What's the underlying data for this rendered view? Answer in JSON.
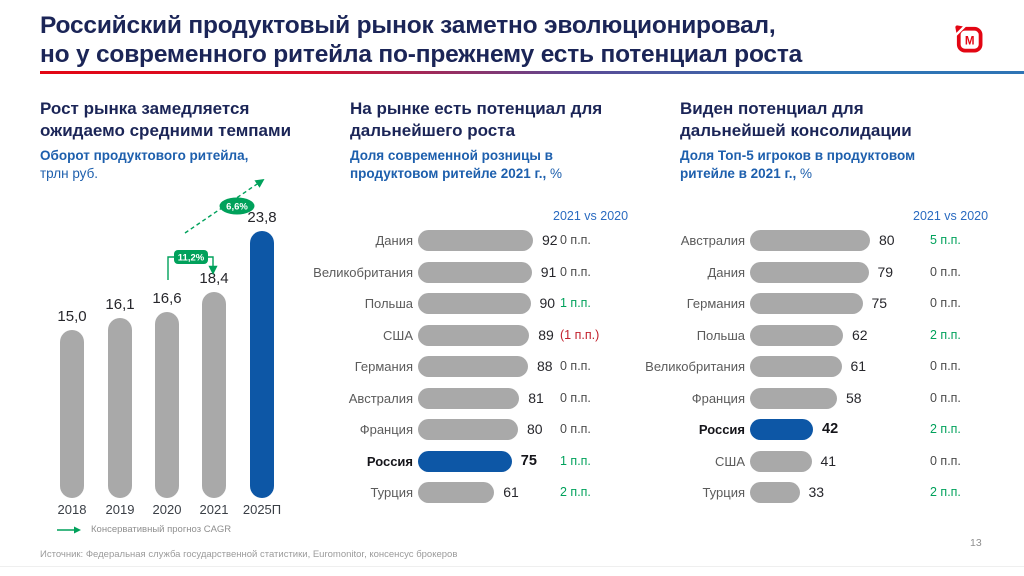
{
  "slide": {
    "title_lines": [
      "Российский продуктовый рынок заметно эволюционировал,",
      "но у современного ритейла по-прежнему есть потенциал роста"
    ],
    "page_number": "13",
    "source": "Источник: Федеральная служба государственной статистики, Euromonitor, консенсус брокеров",
    "logo_letter": "М"
  },
  "sections": [
    {
      "heading": "Рост рынка замедляется ожидаемо средними темпами",
      "subtitle_bold": "Оборот продуктового ритейла,",
      "subtitle_regular": "трлн руб."
    },
    {
      "heading": "На рынке есть потенциал для дальнейшего роста",
      "subtitle_bold": "Доля современной розницы в продуктовом ритейле 2021 г.,",
      "subtitle_regular": "%"
    },
    {
      "heading": "Виден потенциал для дальнейшей консолидации",
      "subtitle_bold": "Доля Топ-5 игроков в продуктовом ритейле в 2021 г.,",
      "subtitle_regular": "%"
    }
  ],
  "colors": {
    "navy": "#1b2557",
    "subtitle_blue": "#1d5fad",
    "bar_gray": "#A9A9A9",
    "bar_blue": "#0D57A6",
    "green": "#00A15B",
    "red": "#C21E2A",
    "neutral_change": "#4a4a4a",
    "header_blue": "#2a6bc0",
    "logo_red": "#E30613"
  },
  "chart_data": [
    {
      "type": "bar",
      "title": "Оборот продуктового ритейла, трлн руб.",
      "categories": [
        "2018",
        "2019",
        "2020",
        "2021",
        "2025П"
      ],
      "values": [
        15.0,
        16.1,
        16.6,
        18.4,
        23.8
      ],
      "value_labels": [
        "15,0",
        "16,1",
        "16,6",
        "18,4",
        "23,8"
      ],
      "highlight_index": 4,
      "annotations": [
        {
          "label": "11,2%",
          "style": "bracket",
          "between": [
            "2020",
            "2021"
          ]
        },
        {
          "label": "6,6%",
          "style": "dashed-arrow",
          "between": [
            "2021",
            "2025П"
          ]
        }
      ],
      "legend": "Консервативный прогноз CAGR",
      "ylim": [
        0,
        24
      ]
    },
    {
      "type": "bar-horizontal",
      "title": "Доля современной розницы в продуктовом ритейле 2021 г., %",
      "change_header": "2021 vs 2020",
      "unit": "%",
      "rows": [
        {
          "country": "Дания",
          "value": 92,
          "change": "0 п.п.",
          "trend": "neutral"
        },
        {
          "country": "Великобритания",
          "value": 91,
          "change": "0 п.п.",
          "trend": "neutral"
        },
        {
          "country": "Польша",
          "value": 90,
          "change": "1 п.п.",
          "trend": "up"
        },
        {
          "country": "США",
          "value": 89,
          "change": "(1 п.п.)",
          "trend": "down"
        },
        {
          "country": "Германия",
          "value": 88,
          "change": "0 п.п.",
          "trend": "neutral"
        },
        {
          "country": "Австралия",
          "value": 81,
          "change": "0 п.п.",
          "trend": "neutral"
        },
        {
          "country": "Франция",
          "value": 80,
          "change": "0 п.п.",
          "trend": "neutral"
        },
        {
          "country": "Россия",
          "value": 75,
          "change": "1 п.п.",
          "trend": "up",
          "highlight": true
        },
        {
          "country": "Турция",
          "value": 61,
          "change": "2 п.п.",
          "trend": "up"
        }
      ]
    },
    {
      "type": "bar-horizontal",
      "title": "Доля Топ-5 игроков в продуктовом ритейле в 2021 г., %",
      "change_header": "2021 vs 2020",
      "unit": "%",
      "rows": [
        {
          "country": "Австралия",
          "value": 80,
          "change": "5 п.п.",
          "trend": "up"
        },
        {
          "country": "Дания",
          "value": 79,
          "change": "0 п.п.",
          "trend": "neutral"
        },
        {
          "country": "Германия",
          "value": 75,
          "change": "0 п.п.",
          "trend": "neutral"
        },
        {
          "country": "Польша",
          "value": 62,
          "change": "2 п.п.",
          "trend": "up"
        },
        {
          "country": "Великобритания",
          "value": 61,
          "change": "0 п.п.",
          "trend": "neutral"
        },
        {
          "country": "Франция",
          "value": 58,
          "change": "0 п.п.",
          "trend": "neutral"
        },
        {
          "country": "Россия",
          "value": 42,
          "change": "2 п.п.",
          "trend": "up",
          "highlight": true
        },
        {
          "country": "США",
          "value": 41,
          "change": "0 п.п.",
          "trend": "neutral"
        },
        {
          "country": "Турция",
          "value": 33,
          "change": "2 п.п.",
          "trend": "up"
        }
      ]
    }
  ]
}
